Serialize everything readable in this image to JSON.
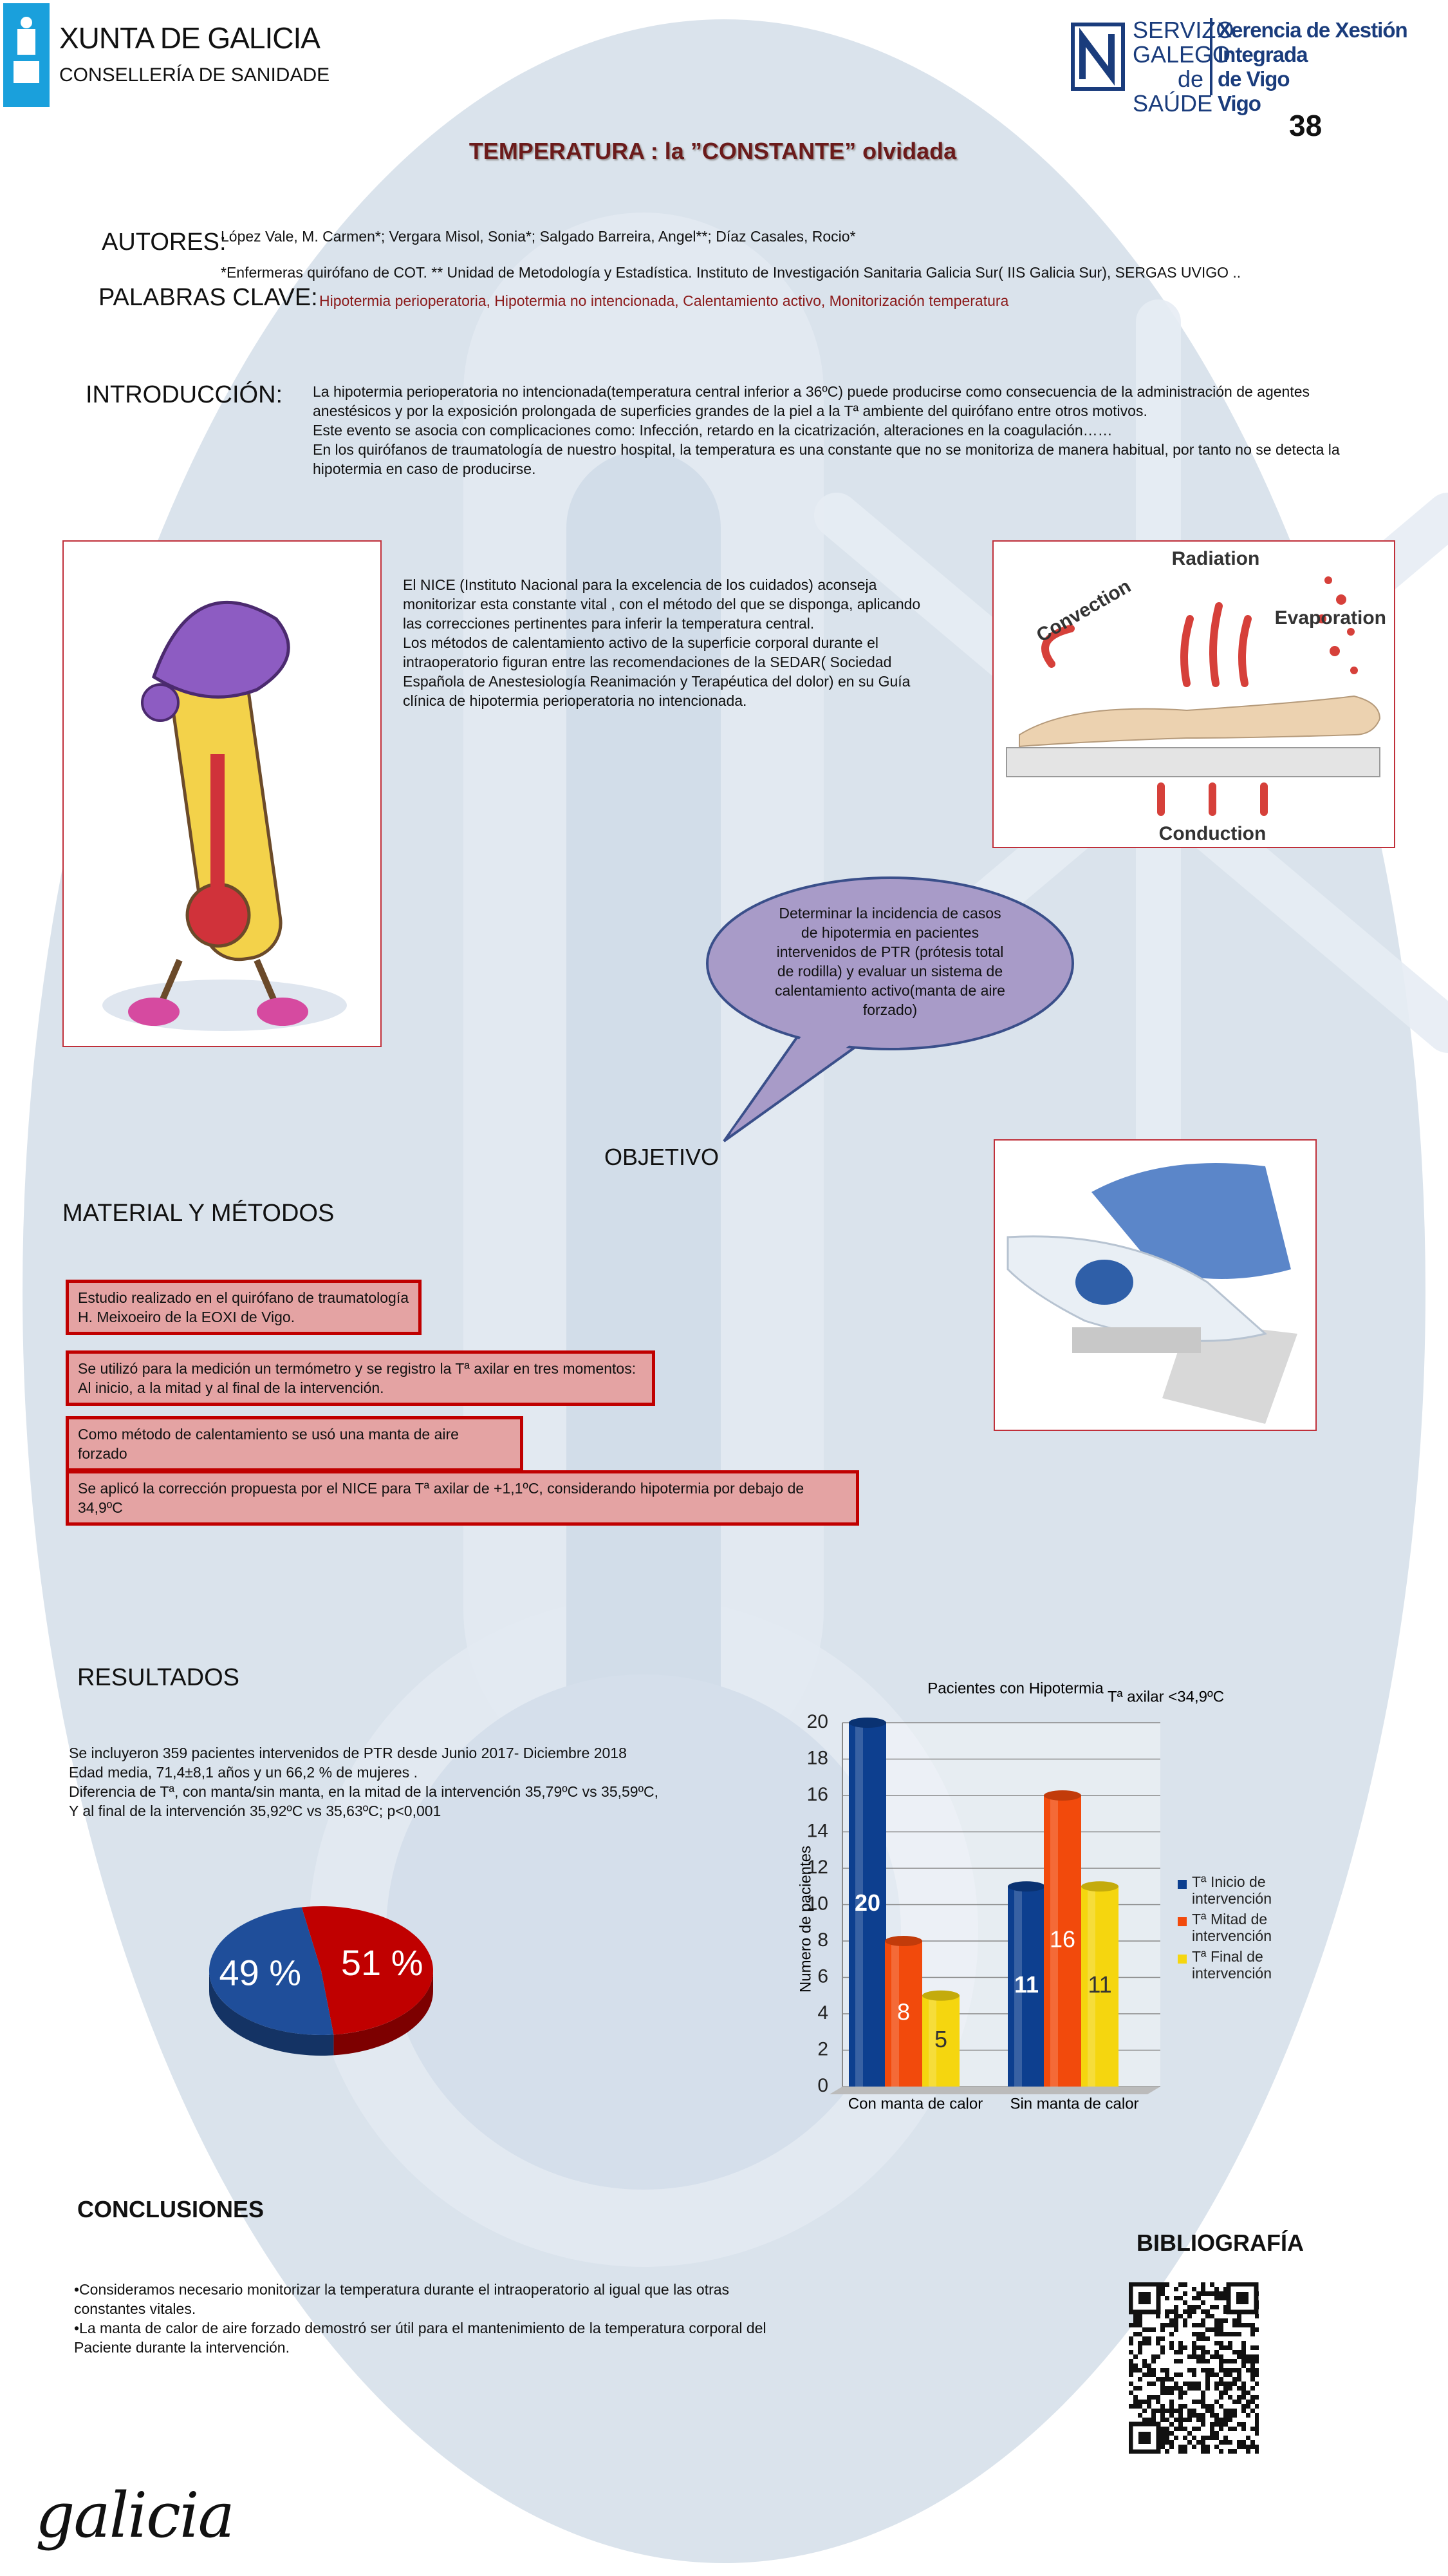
{
  "header": {
    "xunta_title": "XUNTA DE GALICIA",
    "xunta_subtitle": "CONSELLERÍA DE SANIDADE",
    "sergas_lines": [
      "SERVIZO",
      "GALEGO",
      "de SAÚDE"
    ],
    "xerencia_lines": [
      "Xerencia de Xestión Integrada",
      "de Vigo",
      "Vigo"
    ],
    "poster_number": "38",
    "title": "TEMPERATURA : la ”CONSTANTE” olvidada"
  },
  "authors": {
    "label": "AUTORES:",
    "names": "López Vale, M. Carmen*; Vergara Misol, Sonia*; Salgado Barreira, Angel**; Díaz Casales, Rocio*",
    "affiliation": "*Enfermeras quirófano de COT. ** Unidad de Metodología y Estadística. Instituto de Investigación Sanitaria Galicia Sur( IIS Galicia Sur), SERGAS UVIGO ..",
    "keywords_label": "PALABRAS CLAVE:",
    "keywords": "Hipotermia perioperatoria, Hipotermia no intencionada, Calentamiento activo, Monitorización temperatura"
  },
  "introduccion": {
    "label": "INTRODUCCIÓN:",
    "paragraphs": [
      "La hipotermia perioperatoria no intencionada(temperatura central inferior a 36ºC) puede producirse como consecuencia de la administración de agentes anestésicos y por la exposición prolongada de superficies grandes de la piel a la Tª ambiente del quirófano entre otros motivos.",
      "Este evento se asocia con complicaciones como: Infección, retardo en la cicatrización, alteraciones en la coagulación……",
      "En los quirófanos de traumatología de nuestro hospital, la temperatura es una constante que no se monitoriza de manera habitual, por tanto no se detecta la hipotermia en caso de producirse."
    ]
  },
  "nice": {
    "paragraphs": [
      "El NICE (Instituto Nacional para la excelencia de los cuidados) aconseja monitorizar esta constante vital , con el método del que se disponga, aplicando las correcciones pertinentes para inferir la temperatura central.",
      "Los métodos de calentamiento activo de la superficie corporal durante el intraoperatorio figuran entre las recomendaciones de la SEDAR( Sociedad Española de Anestesiología Reanimación y Terapéutica del dolor) en su Guía clínica de hipotermia perioperatoria no intencionada."
    ]
  },
  "heat_loss": {
    "radiation": "Radiation",
    "convection": "Convection",
    "evaporation": "Evaporation",
    "conduction": "Conduction"
  },
  "objetivo": {
    "label": "OBJETIVO",
    "bubble": "Determinar la incidencia de casos de hipotermia en pacientes intervenidos de PTR (prótesis total de rodilla) y evaluar un sistema de calentamiento activo(manta de aire forzado)"
  },
  "material": {
    "label": "MATERIAL Y MÉTODOS",
    "boxes": [
      [
        "Estudio realizado en el quirófano de traumatología",
        "H. Meixoeiro de la EOXI de Vigo."
      ],
      [
        "Se utilizó para la medición un termómetro y se registro la Tª axilar en tres momentos:",
        "Al inicio, a la mitad y al final de la intervención."
      ],
      [
        "Como método de calentamiento se usó una manta de aire forzado"
      ],
      [
        "Se aplicó la corrección propuesta por el NICE para Tª axilar de +1,1ºC, considerando hipotermia por debajo de 34,9ºC"
      ]
    ]
  },
  "resultados": {
    "label": "RESULTADOS",
    "lines": [
      "Se incluyeron 359 pacientes intervenidos de PTR desde Junio 2017- Diciembre 2018",
      "Edad media, 71,4±8,1 años y un 66,2 % de mujeres .",
      "Diferencia de Tª, con manta/sin manta, en la mitad de la intervención 35,79ºC vs 35,59ºC,",
      "Y al final de la intervención 35,92ºC vs 35,63ºC; p<0,001"
    ]
  },
  "chart_data": [
    {
      "type": "pie",
      "values": [
        51,
        49
      ],
      "value_labels": [
        "51 %",
        "49 %"
      ],
      "colors": [
        "#c00000",
        "#1f4e9a"
      ]
    },
    {
      "type": "bar",
      "title": "Pacientes con Hipotermia",
      "annotation": "Tª axilar <34,9ºC",
      "y_label": "Numero de pacientes",
      "categories": [
        "Con manta de calor",
        "Sin manta de calor"
      ],
      "series": [
        {
          "name": "Tª Inicio de intervención",
          "color": "#0d3f8f",
          "values": [
            20,
            11
          ]
        },
        {
          "name": "Tª Mitad de intervención",
          "color": "#f24a0c",
          "values": [
            8,
            16
          ]
        },
        {
          "name": "Tª Final de intervención",
          "color": "#f5d60f",
          "values": [
            5,
            11
          ]
        }
      ],
      "ylim": [
        0,
        20
      ],
      "yticks": [
        0,
        2,
        4,
        6,
        8,
        10,
        12,
        14,
        16,
        18,
        20
      ],
      "grid": true
    }
  ],
  "conclusiones": {
    "label": "CONCLUSIONES",
    "items": [
      "•Consideramos necesario monitorizar la temperatura durante el intraoperatorio al igual que las otras constantes vitales.",
      "•La manta de calor de aire forzado demostró ser útil para el mantenimiento de la temperatura corporal del Paciente durante la intervención."
    ]
  },
  "bibliografia": {
    "label": "BIBLIOGRAFÍA"
  },
  "footer": {
    "logo": "galicia"
  }
}
